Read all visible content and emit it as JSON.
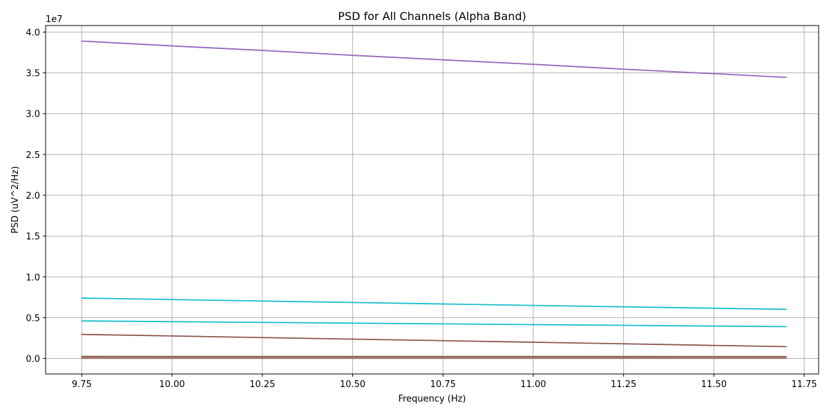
{
  "chart_data": {
    "type": "line",
    "title": "PSD for All Channels (Alpha Band)",
    "xlabel": "Frequency (Hz)",
    "ylabel": "PSD (uV^2/Hz)",
    "y_offset_label": "1e7",
    "xlim": [
      9.65,
      11.79
    ],
    "ylim": [
      -1900000,
      40800000
    ],
    "x_ticks": [
      9.75,
      10.0,
      10.25,
      10.5,
      10.75,
      11.0,
      11.25,
      11.5,
      11.75
    ],
    "x_tick_labels": [
      "9.75",
      "10.00",
      "10.25",
      "10.50",
      "10.75",
      "11.00",
      "11.25",
      "11.50",
      "11.75"
    ],
    "y_ticks": [
      0,
      5000000,
      10000000,
      15000000,
      20000000,
      25000000,
      30000000,
      35000000,
      40000000
    ],
    "y_tick_labels": [
      "0.0",
      "0.5",
      "1.0",
      "1.5",
      "2.0",
      "2.5",
      "3.0",
      "3.5",
      "4.0"
    ],
    "grid": true,
    "x": [
      9.75,
      10.0,
      10.25,
      10.5,
      10.75,
      11.0,
      11.25,
      11.5,
      11.7
    ],
    "series": [
      {
        "color": "#9467bd",
        "values": [
          38900000,
          38300000,
          37750000,
          37150000,
          36600000,
          36050000,
          35450000,
          34900000,
          34450000
        ]
      },
      {
        "color": "#17becf",
        "values": [
          7400000,
          7220000,
          7040000,
          6860000,
          6680000,
          6500000,
          6330000,
          6160000,
          6020000
        ]
      },
      {
        "color": "#17becf",
        "values": [
          4600000,
          4510000,
          4420000,
          4330000,
          4240000,
          4150000,
          4060000,
          3970000,
          3900000
        ]
      },
      {
        "color": "#8c564b",
        "values": [
          2950000,
          2760000,
          2560000,
          2370000,
          2180000,
          1990000,
          1800000,
          1600000,
          1450000
        ]
      },
      {
        "color": "#8c564b",
        "values": [
          250000,
          248000,
          246000,
          244000,
          242000,
          240000,
          238000,
          236000,
          235000
        ]
      },
      {
        "color": "#9b6f62",
        "values": [
          180000,
          178000,
          176000,
          174000,
          172000,
          170000,
          168000,
          166000,
          165000
        ]
      },
      {
        "color": "#9b6f62",
        "values": [
          120000,
          119000,
          118000,
          117000,
          116000,
          115000,
          114000,
          113000,
          112000
        ]
      },
      {
        "color": "#a07b70",
        "values": [
          60000,
          59000,
          58000,
          57000,
          56000,
          55000,
          54000,
          53000,
          52000
        ]
      },
      {
        "color": "#a07b70",
        "values": [
          20000,
          19500,
          19000,
          18500,
          18000,
          17500,
          17000,
          16500,
          16000
        ]
      }
    ]
  }
}
